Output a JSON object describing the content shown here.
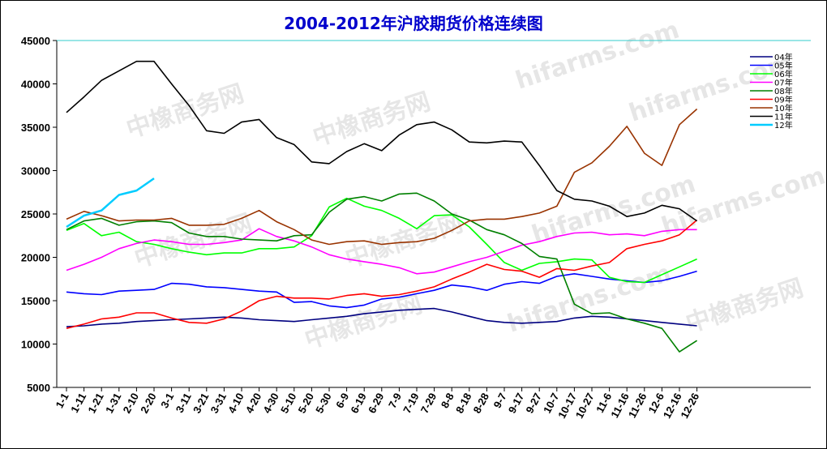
{
  "chart_data": {
    "type": "line",
    "title": "2004-2012年沪胶期货价格连续图",
    "xlabel": "",
    "ylabel": "",
    "ylim": [
      5000,
      45000
    ],
    "yticks": [
      "5000",
      "10000",
      "15000",
      "20000",
      "25000",
      "30000",
      "35000",
      "40000",
      "45000"
    ],
    "x_ticks": [
      "1-1",
      "1-11",
      "1-21",
      "1-31",
      "2-10",
      "2-20",
      "3-1",
      "3-11",
      "3-21",
      "3-31",
      "4-10",
      "4-20",
      "4-30",
      "5-10",
      "5-20",
      "5-30",
      "6-9",
      "6-19",
      "6-29",
      "7-9",
      "7-19",
      "7-29",
      "8-8",
      "8-18",
      "8-28",
      "9-7",
      "9-17",
      "9-27",
      "10-7",
      "10-17",
      "10-27",
      "11-6",
      "11-16",
      "11-26",
      "12-6",
      "12-16",
      "12-26"
    ],
    "grid": false,
    "legend_position": "top-right",
    "watermark": [
      "中橡商务网",
      "hifarms.com"
    ],
    "series": [
      {
        "name": "04年",
        "color": "#000080",
        "values": [
          12000,
          12100,
          12300,
          12400,
          12600,
          12700,
          12800,
          12900,
          13000,
          13100,
          13000,
          12800,
          12700,
          12600,
          12800,
          13000,
          13200,
          13500,
          13700,
          13900,
          14000,
          14100,
          13700,
          13200,
          12700,
          12500,
          12400,
          12500,
          12600,
          13000,
          13200,
          13100,
          12900,
          12700,
          12500,
          12300,
          12100
        ]
      },
      {
        "name": "05年",
        "color": "#0000ff",
        "values": [
          16000,
          15800,
          15700,
          16100,
          16200,
          16300,
          17000,
          16900,
          16600,
          16500,
          16300,
          16100,
          16000,
          14800,
          14900,
          14400,
          14200,
          14500,
          15200,
          15400,
          15800,
          16200,
          16800,
          16600,
          16200,
          16900,
          17200,
          17000,
          17800,
          18100,
          17800,
          17500,
          17300,
          17100,
          17300,
          17800,
          18400
        ]
      },
      {
        "name": "06年",
        "color": "#00ff00",
        "values": [
          23100,
          23900,
          22500,
          22900,
          21800,
          21500,
          21000,
          20600,
          20300,
          20500,
          20500,
          21000,
          21000,
          21200,
          22500,
          25800,
          26800,
          25900,
          25400,
          24500,
          23300,
          24800,
          24900,
          23500,
          21500,
          19400,
          18500,
          19300,
          19500,
          19800,
          19700,
          17700,
          17200,
          17100,
          18000,
          18900,
          19800
        ]
      },
      {
        "name": "07年",
        "color": "#ff00ff",
        "values": [
          18500,
          19200,
          20000,
          21000,
          21600,
          22000,
          21800,
          21500,
          21500,
          21700,
          22000,
          23300,
          22400,
          21900,
          21200,
          20300,
          19800,
          19500,
          19200,
          18800,
          18100,
          18300,
          18900,
          19500,
          20000,
          20700,
          21400,
          21800,
          22400,
          22800,
          22900,
          22600,
          22700,
          22500,
          23000,
          23200,
          23200
        ]
      },
      {
        "name": "08年",
        "color": "#008000",
        "values": [
          23200,
          24200,
          24500,
          23700,
          24100,
          24200,
          24000,
          22800,
          22400,
          22400,
          22100,
          22000,
          21900,
          22500,
          22600,
          25200,
          26700,
          27000,
          26500,
          27300,
          27400,
          26500,
          25000,
          24300,
          23200,
          22600,
          21600,
          20100,
          19800,
          14600,
          13500,
          13600,
          12900,
          12400,
          11800,
          9100,
          10400
        ]
      },
      {
        "name": "09年",
        "color": "#ff0000",
        "values": [
          11800,
          12300,
          12900,
          13100,
          13600,
          13600,
          13000,
          12500,
          12400,
          12900,
          13800,
          15000,
          15500,
          15300,
          15300,
          15200,
          15600,
          15800,
          15500,
          15700,
          16100,
          16600,
          17500,
          18300,
          19200,
          18600,
          18400,
          17700,
          18700,
          18500,
          19000,
          19400,
          21000,
          21500,
          21900,
          22600,
          24300
        ]
      },
      {
        "name": "10年",
        "color": "#993300",
        "values": [
          24400,
          25300,
          24800,
          24200,
          24300,
          24300,
          24500,
          23700,
          23700,
          23800,
          24500,
          25400,
          24100,
          23200,
          22000,
          21500,
          21800,
          21900,
          21500,
          21700,
          21800,
          22200,
          23100,
          24200,
          24400,
          24400,
          24700,
          25100,
          25900,
          29800,
          30900,
          32800,
          35100,
          32000,
          30600,
          35300,
          37100
        ]
      },
      {
        "name": "11年",
        "color": "#000000",
        "values": [
          36700,
          38500,
          40400,
          41500,
          42600,
          42600,
          40000,
          37500,
          34600,
          34300,
          35600,
          35900,
          33800,
          33000,
          31000,
          30800,
          32200,
          33100,
          32300,
          34100,
          35300,
          35600,
          34700,
          33300,
          33200,
          33400,
          33300,
          30600,
          27700,
          26700,
          26500,
          25900,
          24700,
          25100,
          26000,
          25600,
          24200
        ]
      },
      {
        "name": "12年",
        "color": "#00ccff",
        "values": [
          23500,
          24800,
          25400,
          27200,
          27700,
          29100
        ]
      }
    ]
  }
}
